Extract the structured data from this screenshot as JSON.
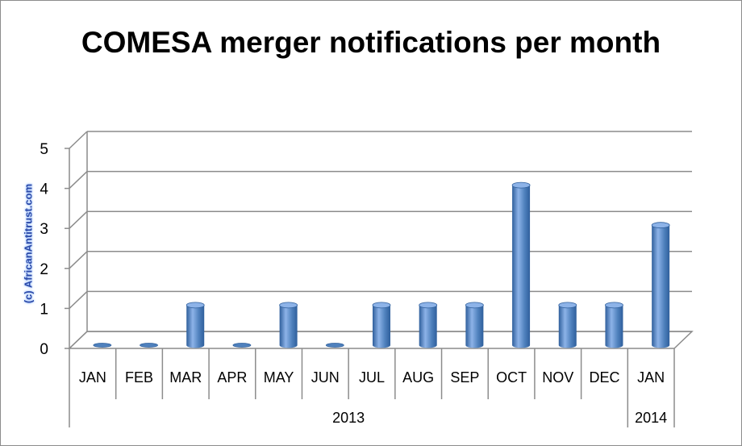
{
  "chart_data": {
    "type": "bar",
    "title": "COMESA merger notifications per month",
    "watermark": "(c) AfricanAntitrust.com",
    "categories": [
      "JAN",
      "FEB",
      "MAR",
      "APR",
      "MAY",
      "JUN",
      "JUL",
      "AUG",
      "SEP",
      "OCT",
      "NOV",
      "DEC",
      "JAN"
    ],
    "groups": [
      {
        "label": "2013",
        "count": 12
      },
      {
        "label": "2014",
        "count": 1
      }
    ],
    "values": [
      0,
      0,
      1,
      0,
      1,
      0,
      1,
      1,
      1,
      4,
      1,
      1,
      3
    ],
    "ylim": [
      0,
      5
    ],
    "yticks": [
      0,
      1,
      2,
      3,
      4,
      5
    ],
    "grid": true,
    "legend": "none",
    "bar_color": "#4f81bd",
    "bar_color_dark": "#2f5f9c",
    "bar_color_light": "#8db3e8"
  }
}
